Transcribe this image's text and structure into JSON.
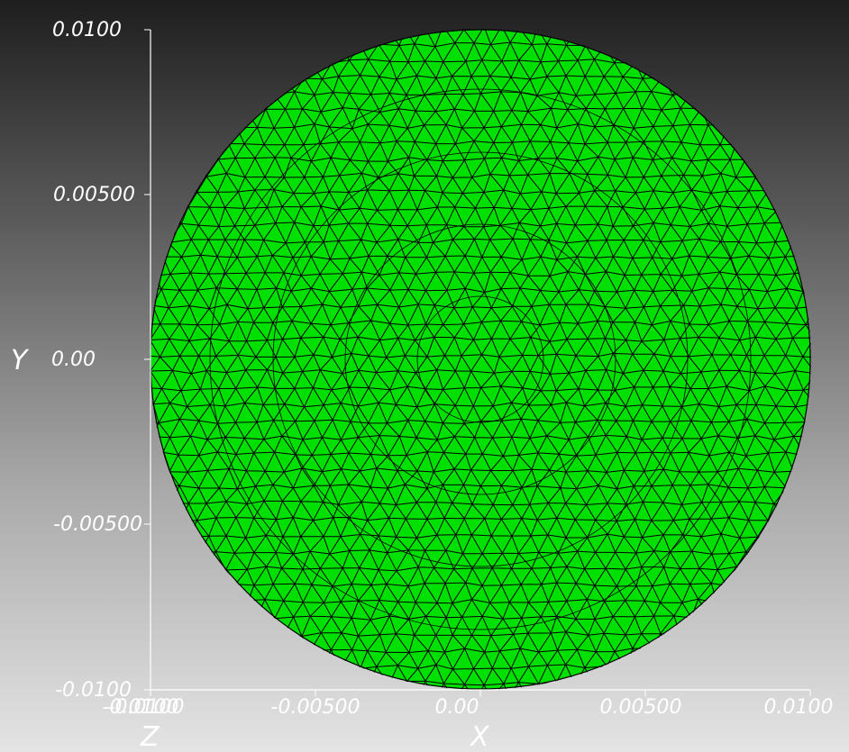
{
  "view": {
    "background_top": "#1e1e1e",
    "background_bottom": "#e4e4e4",
    "mesh_color": "#00e000",
    "edge_color": "#000000"
  },
  "mesh": {
    "shape": "disk",
    "element_type": "triangle",
    "center": [
      0.0,
      0.0
    ],
    "radius": 0.01
  },
  "axes": {
    "x": {
      "title": "X",
      "range": [
        -0.01,
        0.01
      ],
      "ticks": [
        {
          "value": -0.01,
          "label": "-0.0100"
        },
        {
          "value": -0.005,
          "label": "-0.00500"
        },
        {
          "value": 0,
          "label": "0.00"
        },
        {
          "value": 0.005,
          "label": "0.00500"
        },
        {
          "value": 0.01,
          "label": "0.0100"
        }
      ]
    },
    "y": {
      "title": "Y",
      "range": [
        -0.01,
        0.01
      ],
      "ticks": [
        {
          "value": 0.01,
          "label": "0.0100"
        },
        {
          "value": 0.005,
          "label": "0.00500"
        },
        {
          "value": 0,
          "label": "0.00"
        },
        {
          "value": -0.005,
          "label": "-0.00500"
        },
        {
          "value": -0.01,
          "label": "-0.0100"
        }
      ]
    },
    "z": {
      "title": "Z",
      "ticks": [
        {
          "label": "-0.0100"
        }
      ]
    }
  }
}
